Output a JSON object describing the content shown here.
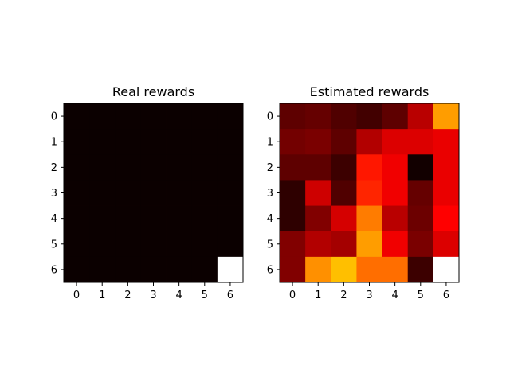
{
  "chart_data": [
    {
      "type": "heatmap",
      "title": "Real rewards",
      "colormap": "hot",
      "x_ticks": [
        "0",
        "1",
        "2",
        "3",
        "4",
        "5",
        "6"
      ],
      "y_ticks": [
        "0",
        "1",
        "2",
        "3",
        "4",
        "5",
        "6"
      ],
      "grid": false,
      "values": [
        [
          0,
          0,
          0,
          0,
          0,
          0,
          0
        ],
        [
          0,
          0,
          0,
          0,
          0,
          0,
          0
        ],
        [
          0,
          0,
          0,
          0,
          0,
          0,
          0
        ],
        [
          0,
          0,
          0,
          0,
          0,
          0,
          0
        ],
        [
          0,
          0,
          0,
          0,
          0,
          0,
          0
        ],
        [
          0,
          0,
          0,
          0,
          0,
          0,
          0
        ],
        [
          0,
          0,
          0,
          0,
          0,
          0,
          1
        ]
      ]
    },
    {
      "type": "heatmap",
      "title": "Estimated rewards",
      "colormap": "hot",
      "x_ticks": [
        "0",
        "1",
        "2",
        "3",
        "4",
        "5",
        "6"
      ],
      "y_ticks": [
        "0",
        "1",
        "2",
        "3",
        "4",
        "5",
        "6"
      ],
      "grid": false,
      "values": [
        [
          0.12,
          0.13,
          0.1,
          0.08,
          0.12,
          0.25,
          0.6
        ],
        [
          0.15,
          0.16,
          0.12,
          0.24,
          0.3,
          0.3,
          0.32
        ],
        [
          0.12,
          0.12,
          0.07,
          0.4,
          0.33,
          0.01,
          0.32
        ],
        [
          0.05,
          0.28,
          0.1,
          0.42,
          0.33,
          0.13,
          0.32
        ],
        [
          0.05,
          0.17,
          0.29,
          0.55,
          0.25,
          0.14,
          0.36
        ],
        [
          0.17,
          0.24,
          0.22,
          0.6,
          0.33,
          0.16,
          0.3
        ],
        [
          0.17,
          0.58,
          0.65,
          0.53,
          0.53,
          0.07,
          1.0
        ]
      ]
    }
  ]
}
